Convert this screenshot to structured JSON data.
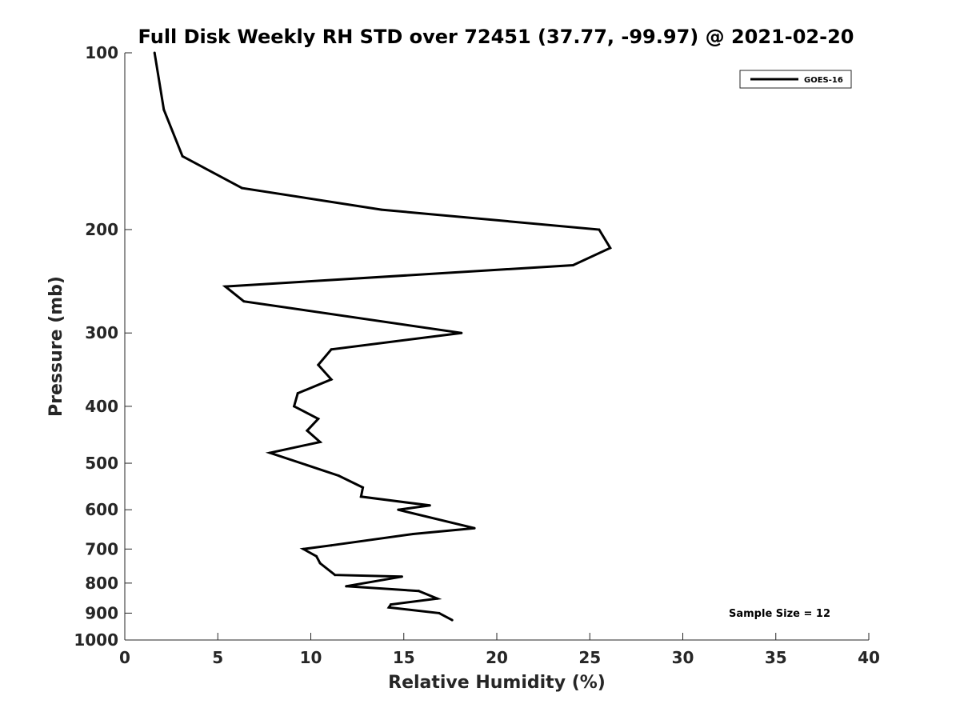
{
  "chart_data": {
    "type": "line",
    "title": "Full Disk Weekly RH STD over 72451 (37.77, -99.97) @ 2021-02-20",
    "xlabel": "Relative Humidity (%)",
    "ylabel": "Pressure (mb)",
    "xlim": [
      0,
      40
    ],
    "ylim": [
      100,
      1000
    ],
    "y_scale": "log",
    "y_reversed": true,
    "grid": false,
    "legend_position": "top-right",
    "x_ticks": [
      "0",
      "5",
      "10",
      "15",
      "20",
      "25",
      "30",
      "35",
      "40"
    ],
    "y_ticks": [
      "100",
      "200",
      "300",
      "400",
      "500",
      "600",
      "700",
      "800",
      "900",
      "1000"
    ],
    "series": [
      {
        "name": "GOES-16",
        "color": "#000000",
        "points": [
          {
            "x": 1.6,
            "y": 100
          },
          {
            "x": 2.1,
            "y": 125
          },
          {
            "x": 3.1,
            "y": 150
          },
          {
            "x": 6.3,
            "y": 170
          },
          {
            "x": 13.8,
            "y": 185
          },
          {
            "x": 25.5,
            "y": 200
          },
          {
            "x": 26.1,
            "y": 215
          },
          {
            "x": 24.1,
            "y": 230
          },
          {
            "x": 5.4,
            "y": 250
          },
          {
            "x": 6.4,
            "y": 265
          },
          {
            "x": 18.1,
            "y": 300
          },
          {
            "x": 11.1,
            "y": 320
          },
          {
            "x": 10.4,
            "y": 340
          },
          {
            "x": 11.1,
            "y": 360
          },
          {
            "x": 9.3,
            "y": 380
          },
          {
            "x": 9.1,
            "y": 400
          },
          {
            "x": 10.4,
            "y": 420
          },
          {
            "x": 9.8,
            "y": 440
          },
          {
            "x": 10.5,
            "y": 460
          },
          {
            "x": 7.8,
            "y": 480
          },
          {
            "x": 11.5,
            "y": 525
          },
          {
            "x": 12.8,
            "y": 550
          },
          {
            "x": 12.7,
            "y": 570
          },
          {
            "x": 16.4,
            "y": 590
          },
          {
            "x": 14.7,
            "y": 600
          },
          {
            "x": 18.8,
            "y": 645
          },
          {
            "x": 15.5,
            "y": 660
          },
          {
            "x": 11.1,
            "y": 690
          },
          {
            "x": 9.6,
            "y": 700
          },
          {
            "x": 10.3,
            "y": 720
          },
          {
            "x": 10.5,
            "y": 740
          },
          {
            "x": 11.3,
            "y": 775
          },
          {
            "x": 14.9,
            "y": 780
          },
          {
            "x": 11.9,
            "y": 810
          },
          {
            "x": 15.8,
            "y": 825
          },
          {
            "x": 16.8,
            "y": 850
          },
          {
            "x": 14.3,
            "y": 870
          },
          {
            "x": 14.2,
            "y": 880
          },
          {
            "x": 16.9,
            "y": 900
          },
          {
            "x": 17.6,
            "y": 925
          }
        ]
      }
    ],
    "annotations": [
      "Sample Size = 12"
    ]
  }
}
